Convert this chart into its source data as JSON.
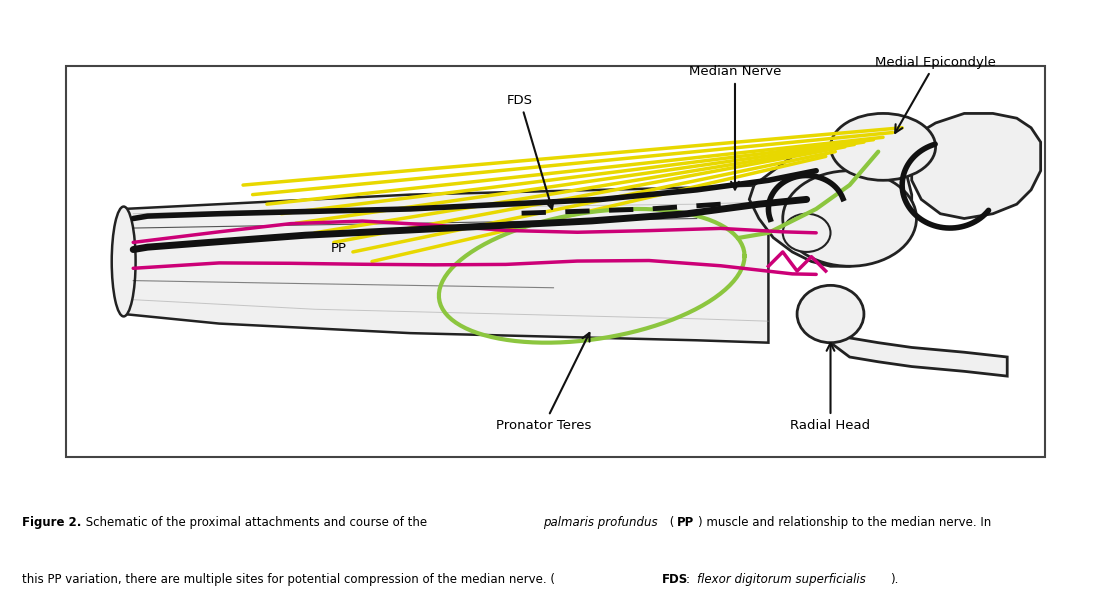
{
  "background_color": "#ffffff",
  "bone_fill": "#f0f0f0",
  "bone_fill2": "#e8e8e8",
  "bone_outline": "#222222",
  "black_nerve": "#111111",
  "yellow": "#e8d800",
  "magenta": "#cc0077",
  "green": "#8cc63f",
  "ann_color": "#111111",
  "border_color": "#444444",
  "labels": {
    "median_nerve": "Median Nerve",
    "medial_epicondyle": "Medial Epicondyle",
    "fds": "FDS",
    "pp": "PP",
    "pronator_teres": "Pronator Teres",
    "radial_head": "Radial Head"
  },
  "caption_bold": "Figure 2.",
  "caption_normal1": " Schematic of the proximal attachments and course of the ",
  "caption_italic1": "palmaris profundus",
  "caption_bold2": " (PP)",
  "caption_normal2": " muscle and relationship to the median nerve. In\nthis PP variation, there are multiple sites for potential compression of the median nerve. (",
  "caption_bold3": "FDS",
  "caption_normal3": ": ",
  "caption_italic2": "flexor digitorum superficialis",
  "caption_normal4": ")."
}
